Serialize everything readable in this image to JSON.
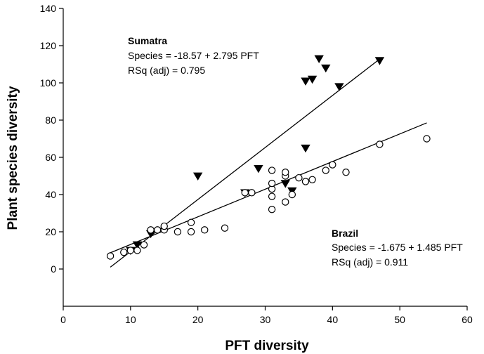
{
  "chart_data": {
    "type": "scatter",
    "xlabel": "PFT diversity",
    "ylabel": "Plant species diversity",
    "xlim": [
      0,
      60
    ],
    "ylim": [
      -20,
      140
    ],
    "x_ticks": [
      0,
      10,
      20,
      30,
      40,
      50,
      60
    ],
    "y_ticks": [
      0,
      20,
      40,
      60,
      80,
      100,
      120,
      140
    ],
    "grid": false,
    "series": [
      {
        "name": "Sumatra",
        "marker": "filled-triangle-down",
        "color": "#000000",
        "points": [
          {
            "x": 10,
            "y": 10
          },
          {
            "x": 11,
            "y": 13
          },
          {
            "x": 13,
            "y": 19
          },
          {
            "x": 20,
            "y": 50
          },
          {
            "x": 27,
            "y": 41
          },
          {
            "x": 29,
            "y": 54
          },
          {
            "x": 33,
            "y": 46
          },
          {
            "x": 34,
            "y": 42
          },
          {
            "x": 36,
            "y": 65
          },
          {
            "x": 36,
            "y": 101
          },
          {
            "x": 37,
            "y": 102
          },
          {
            "x": 38,
            "y": 113
          },
          {
            "x": 39,
            "y": 108
          },
          {
            "x": 41,
            "y": 98
          },
          {
            "x": 47,
            "y": 112
          }
        ],
        "fit": {
          "intercept": -18.57,
          "slope": 2.795,
          "x_range": [
            7,
            47
          ]
        },
        "annotation": {
          "title": "Sumatra",
          "equation": "Species = -18.57 + 2.795 PFT",
          "rsq": "RSq (adj) = 0.795"
        }
      },
      {
        "name": "Brazil",
        "marker": "open-circle",
        "color": "#000000",
        "points": [
          {
            "x": 7,
            "y": 7
          },
          {
            "x": 9,
            "y": 9
          },
          {
            "x": 10,
            "y": 10
          },
          {
            "x": 11,
            "y": 10
          },
          {
            "x": 12,
            "y": 13
          },
          {
            "x": 13,
            "y": 21
          },
          {
            "x": 14,
            "y": 21
          },
          {
            "x": 15,
            "y": 21
          },
          {
            "x": 15,
            "y": 23
          },
          {
            "x": 17,
            "y": 20
          },
          {
            "x": 19,
            "y": 20
          },
          {
            "x": 19,
            "y": 25
          },
          {
            "x": 21,
            "y": 21
          },
          {
            "x": 24,
            "y": 22
          },
          {
            "x": 27,
            "y": 41
          },
          {
            "x": 28,
            "y": 41
          },
          {
            "x": 31,
            "y": 32
          },
          {
            "x": 31,
            "y": 39
          },
          {
            "x": 31,
            "y": 43
          },
          {
            "x": 31,
            "y": 46
          },
          {
            "x": 31,
            "y": 53
          },
          {
            "x": 33,
            "y": 36
          },
          {
            "x": 33,
            "y": 50
          },
          {
            "x": 33,
            "y": 52
          },
          {
            "x": 34,
            "y": 40
          },
          {
            "x": 35,
            "y": 49
          },
          {
            "x": 36,
            "y": 47
          },
          {
            "x": 37,
            "y": 48
          },
          {
            "x": 39,
            "y": 53
          },
          {
            "x": 40,
            "y": 56
          },
          {
            "x": 42,
            "y": 52
          },
          {
            "x": 47,
            "y": 67
          },
          {
            "x": 54,
            "y": 70
          }
        ],
        "fit": {
          "intercept": -1.675,
          "slope": 1.485,
          "x_range": [
            7,
            54
          ]
        },
        "annotation": {
          "title": "Brazil",
          "equation": "Species = -1.675 + 1.485 PFT",
          "rsq": "RSq (adj) = 0.911"
        }
      }
    ]
  }
}
